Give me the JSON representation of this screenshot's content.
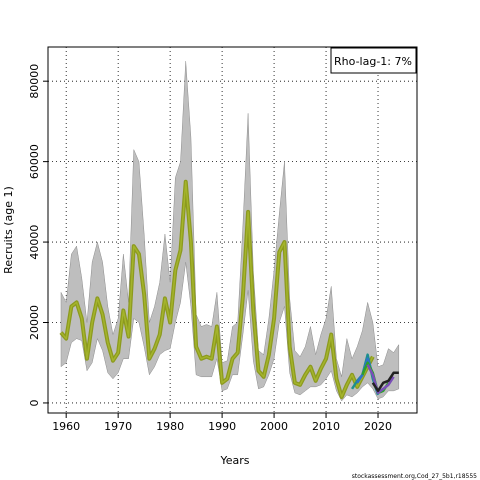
{
  "chart_data": {
    "type": "line",
    "xlabel": "Years",
    "ylabel": "Recruits (age 1)",
    "xlim": [
      1956.5,
      2027.5
    ],
    "ylim": [
      -2500,
      88500
    ],
    "xticks": [
      1960,
      1970,
      1980,
      1990,
      2000,
      2010,
      2020
    ],
    "yticks": [
      0,
      20000,
      40000,
      60000,
      80000
    ],
    "grid": true,
    "legend_position": "top-right",
    "legend_text": "Rho-lag-1: 7%",
    "credit": "stockassessment.org,Cod_27_5b1,r18555",
    "colors": {
      "band": "#bebebe",
      "band_edge": "#8c8c8c",
      "main_line": "#8c9a1e",
      "main_line_inner": "#a4b42c",
      "retro_teal": "#1d8f8f",
      "retro_blue": "#2f73c8",
      "retro_green": "#2ca02c",
      "retro_cyan": "#2fb8c8",
      "retro_purple": "#7a4fb8",
      "retro_black": "#222222"
    },
    "band_years": [
      1959,
      1960,
      1961,
      1962,
      1963,
      1964,
      1965,
      1966,
      1967,
      1968,
      1969,
      1970,
      1971,
      1972,
      1973,
      1974,
      1975,
      1976,
      1977,
      1978,
      1979,
      1980,
      1981,
      1982,
      1983,
      1984,
      1985,
      1986,
      1987,
      1988,
      1989,
      1990,
      1991,
      1992,
      1993,
      1994,
      1995,
      1996,
      1997,
      1998,
      1999,
      2000,
      2001,
      2002,
      2003,
      2004,
      2005,
      2006,
      2007,
      2008,
      2009,
      2010,
      2011,
      2012,
      2013,
      2014,
      2015,
      2016,
      2017,
      2018,
      2019,
      2020,
      2021,
      2022,
      2023,
      2024
    ],
    "band_upper": [
      27500,
      25000,
      37000,
      39000,
      31000,
      20000,
      35000,
      40000,
      35000,
      24000,
      17000,
      21000,
      37000,
      25000,
      63000,
      60000,
      42000,
      20000,
      24000,
      30000,
      42000,
      30000,
      56000,
      60000,
      85000,
      66000,
      22000,
      19000,
      19500,
      19000,
      27500,
      10000,
      10500,
      19000,
      20000,
      44000,
      72000,
      33000,
      13000,
      12000,
      21000,
      33000,
      47000,
      60000,
      26000,
      13000,
      11500,
      14000,
      19000,
      12000,
      17000,
      21000,
      29000,
      11000,
      6500,
      16000,
      11000,
      14000,
      18000,
      25000,
      20000,
      9000,
      9500,
      13500,
      12500,
      14500
    ],
    "band_lower": [
      9000,
      10000,
      15000,
      16000,
      15500,
      8000,
      10000,
      16000,
      13000,
      7500,
      6000,
      7500,
      11000,
      11000,
      21000,
      20000,
      14000,
      7000,
      9000,
      12000,
      13000,
      13500,
      20000,
      25000,
      35000,
      24000,
      7000,
      6500,
      6500,
      6500,
      11000,
      3000,
      3500,
      7000,
      7000,
      17000,
      28000,
      10500,
      3500,
      4000,
      7000,
      11000,
      20000,
      24000,
      7500,
      2500,
      2000,
      3000,
      4000,
      4000,
      4500,
      6000,
      8000,
      3000,
      500,
      2000,
      1500,
      2500,
      4000,
      5000,
      3500,
      1000,
      1500,
      3000,
      3000,
      3500
    ],
    "series": [
      {
        "years": [
          1959,
          1960,
          1961,
          1962,
          1963,
          1964,
          1965,
          1966,
          1967,
          1968,
          1969,
          1970,
          1971,
          1972,
          1973,
          1974,
          1975,
          1976,
          1977,
          1978,
          1979,
          1980,
          1981,
          1982,
          1983,
          1984,
          1985,
          1986,
          1987,
          1988,
          1989,
          1990,
          1991,
          1992,
          1993,
          1994,
          1995,
          1996,
          1997,
          1998,
          1999,
          2000,
          2001,
          2002,
          2003,
          2004,
          2005,
          2006,
          2007,
          2008,
          2009,
          2010,
          2011,
          2012,
          2013,
          2014,
          2015,
          2016,
          2017,
          2018,
          2019
        ],
        "values": [
          17500,
          16000,
          24000,
          25000,
          21000,
          11000,
          20000,
          26000,
          22000,
          15000,
          10500,
          12500,
          23000,
          16500,
          39000,
          37000,
          27000,
          11000,
          13500,
          17000,
          26000,
          20000,
          33000,
          38000,
          55000,
          40000,
          14000,
          11000,
          11500,
          11000,
          19000,
          5000,
          6000,
          11000,
          12500,
          26500,
          47500,
          23000,
          8000,
          6500,
          12000,
          21000,
          37500,
          40000,
          14000,
          5000,
          4500,
          7000,
          9000,
          5500,
          8500,
          11000,
          17000,
          6000,
          1500,
          4500,
          7000,
          4000,
          6500,
          9000,
          11500
        ]
      },
      {
        "years": [
          2015,
          2016,
          2017,
          2018,
          2019,
          2020
        ],
        "values": [
          3500,
          5500,
          7000,
          12000,
          6000,
          2000
        ]
      },
      {
        "years": [
          2016,
          2017,
          2018,
          2019,
          2020,
          2021
        ],
        "values": [
          5000,
          7000,
          11000,
          7000,
          2500,
          3500
        ]
      },
      {
        "years": [
          2017,
          2018,
          2019,
          2020,
          2021,
          2022
        ],
        "values": [
          7000,
          10000,
          7500,
          2500,
          3000,
          5000
        ]
      },
      {
        "years": [
          2018,
          2019,
          2020,
          2021,
          2022,
          2023
        ],
        "values": [
          9500,
          7000,
          2500,
          3500,
          4500,
          6500
        ]
      },
      {
        "years": [
          2019,
          2020,
          2021,
          2022,
          2023,
          2024
        ],
        "values": [
          5000,
          3000,
          5000,
          5500,
          7500,
          7500
        ]
      }
    ]
  }
}
